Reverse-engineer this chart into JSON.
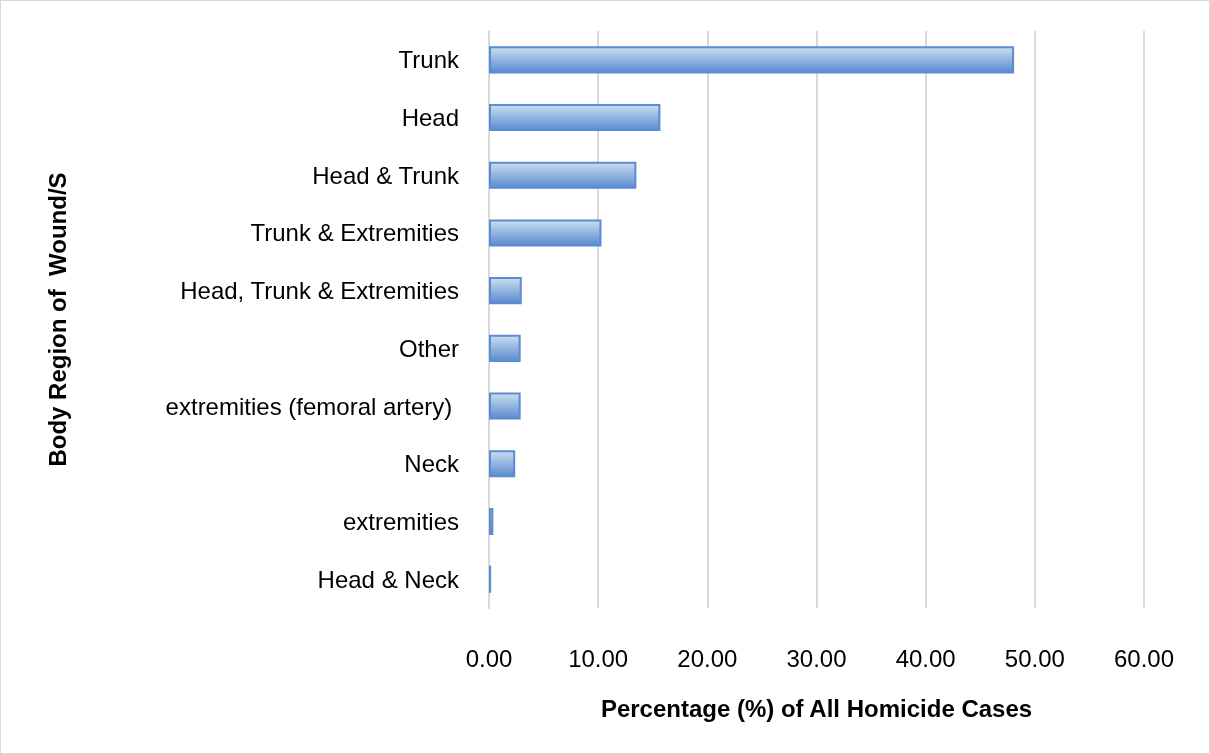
{
  "chart_data": {
    "type": "bar",
    "orientation": "horizontal",
    "xlabel": "Percentage (%) of All Homicide Cases",
    "ylabel": "Body Region of  Wound/S",
    "categories": [
      "Trunk",
      "Head",
      "Head & Trunk",
      "Trunk & Extremities",
      "Head, Trunk & Extremities",
      "Other",
      "extremities (femoral artery) ",
      "Neck",
      "extremities",
      "Head & Neck"
    ],
    "values": [
      48.1,
      15.7,
      13.5,
      10.3,
      3.0,
      2.9,
      2.9,
      2.4,
      0.4,
      0.2
    ],
    "color": "#5b8bd0",
    "xlim": [
      0,
      60
    ],
    "xticks": [
      {
        "value": 0,
        "label": "0.00"
      },
      {
        "value": 10,
        "label": "10.00"
      },
      {
        "value": 20,
        "label": "20.00"
      },
      {
        "value": 30,
        "label": "30.00"
      },
      {
        "value": 40,
        "label": "40.00"
      },
      {
        "value": 50,
        "label": "50.00"
      },
      {
        "value": 60,
        "label": "60.00"
      }
    ],
    "grid": "x"
  }
}
